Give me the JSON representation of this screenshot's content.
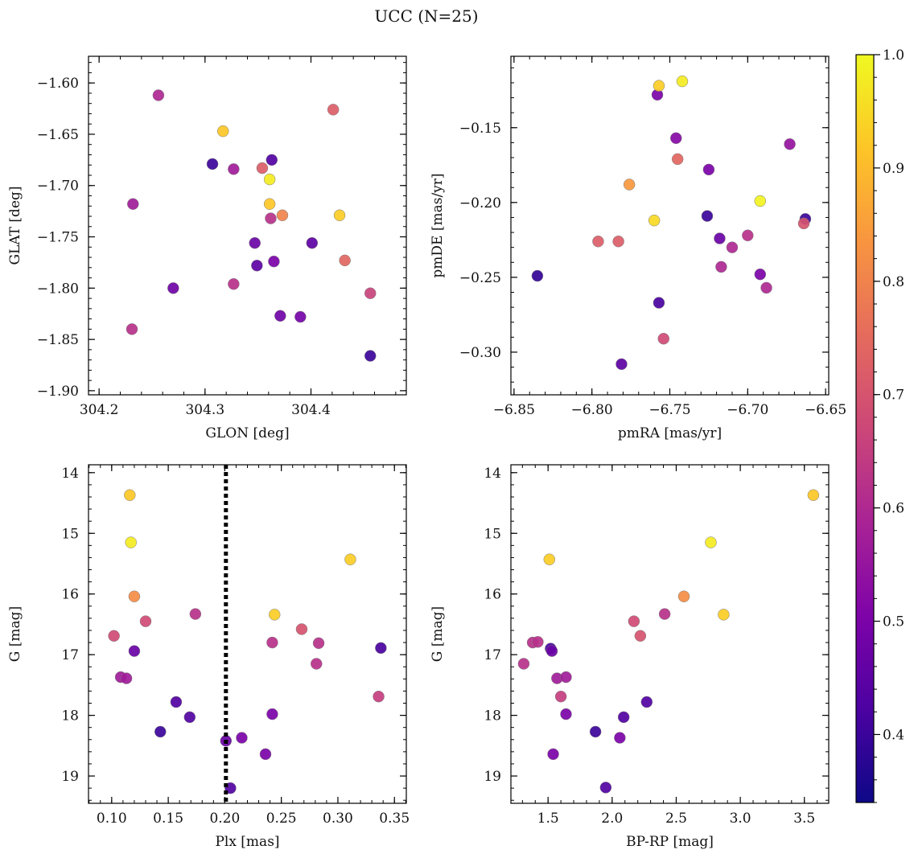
{
  "figure": {
    "title": "UCC (N=25)"
  },
  "colorbar": {
    "range": [
      0.34,
      1.0
    ],
    "ticks": [
      "0.4",
      "0.5",
      "0.6",
      "0.7",
      "0.8",
      "0.9",
      "1.0"
    ],
    "tick_values": [
      0.4,
      0.5,
      0.6,
      0.7,
      0.8,
      0.9,
      1.0
    ],
    "colormap": "plasma"
  },
  "chart_data": [
    {
      "type": "scatter",
      "xlabel": "GLON [deg]",
      "ylabel": "GLAT [deg]",
      "xlim": [
        304.19,
        304.49
      ],
      "ylim": [
        -1.904,
        -1.574
      ],
      "x_ticks": [
        "304.2",
        "304.3",
        "304.4"
      ],
      "x_tick_values": [
        304.2,
        304.3,
        304.4
      ],
      "y_ticks": [
        "−1.60",
        "−1.65",
        "−1.70",
        "−1.75",
        "−1.80",
        "−1.85",
        "−1.90"
      ],
      "y_tick_values": [
        -1.6,
        -1.65,
        -1.7,
        -1.75,
        -1.8,
        -1.85,
        -1.9
      ],
      "points": [
        {
          "x": 304.256,
          "y": -1.612,
          "c": 0.6
        },
        {
          "x": 304.421,
          "y": -1.626,
          "c": 0.72
        },
        {
          "x": 304.317,
          "y": -1.647,
          "c": 0.92
        },
        {
          "x": 304.363,
          "y": -1.675,
          "c": 0.43
        },
        {
          "x": 304.307,
          "y": -1.679,
          "c": 0.4
        },
        {
          "x": 304.327,
          "y": -1.684,
          "c": 0.57
        },
        {
          "x": 304.354,
          "y": -1.683,
          "c": 0.72
        },
        {
          "x": 304.361,
          "y": -1.694,
          "c": 0.98
        },
        {
          "x": 304.232,
          "y": -1.718,
          "c": 0.57
        },
        {
          "x": 304.361,
          "y": -1.718,
          "c": 0.92
        },
        {
          "x": 304.373,
          "y": -1.729,
          "c": 0.8
        },
        {
          "x": 304.427,
          "y": -1.729,
          "c": 0.93
        },
        {
          "x": 304.362,
          "y": -1.732,
          "c": 0.62
        },
        {
          "x": 304.347,
          "y": -1.756,
          "c": 0.47
        },
        {
          "x": 304.401,
          "y": -1.756,
          "c": 0.45
        },
        {
          "x": 304.365,
          "y": -1.774,
          "c": 0.5
        },
        {
          "x": 304.432,
          "y": -1.773,
          "c": 0.74
        },
        {
          "x": 304.349,
          "y": -1.778,
          "c": 0.45
        },
        {
          "x": 304.327,
          "y": -1.796,
          "c": 0.62
        },
        {
          "x": 304.27,
          "y": -1.8,
          "c": 0.48
        },
        {
          "x": 304.456,
          "y": -1.805,
          "c": 0.66
        },
        {
          "x": 304.371,
          "y": -1.827,
          "c": 0.48
        },
        {
          "x": 304.39,
          "y": -1.828,
          "c": 0.49
        },
        {
          "x": 304.231,
          "y": -1.84,
          "c": 0.62
        },
        {
          "x": 304.456,
          "y": -1.866,
          "c": 0.4
        }
      ]
    },
    {
      "type": "scatter",
      "xlabel": "pmRA [mas/yr]",
      "ylabel": "pmDE [mas/yr]",
      "xlim": [
        -6.852,
        -6.648
      ],
      "ylim": [
        -0.3285,
        -0.1023
      ],
      "x_ticks": [
        "−6.85",
        "−6.80",
        "−6.75",
        "−6.70",
        "−6.65"
      ],
      "x_tick_values": [
        -6.85,
        -6.8,
        -6.75,
        -6.7,
        -6.65
      ],
      "y_ticks": [
        "−0.15",
        "−0.20",
        "−0.25",
        "−0.30"
      ],
      "y_tick_values": [
        -0.15,
        -0.2,
        -0.25,
        -0.3
      ],
      "points": [
        {
          "x": -6.742,
          "y": -0.119,
          "c": 0.98
        },
        {
          "x": -6.757,
          "y": -0.122,
          "c": 0.93
        },
        {
          "x": -6.758,
          "y": -0.128,
          "c": 0.5
        },
        {
          "x": -6.746,
          "y": -0.157,
          "c": 0.52
        },
        {
          "x": -6.673,
          "y": -0.161,
          "c": 0.55
        },
        {
          "x": -6.745,
          "y": -0.171,
          "c": 0.74
        },
        {
          "x": -6.725,
          "y": -0.178,
          "c": 0.5
        },
        {
          "x": -6.776,
          "y": -0.188,
          "c": 0.84
        },
        {
          "x": -6.692,
          "y": -0.199,
          "c": 0.99
        },
        {
          "x": -6.726,
          "y": -0.209,
          "c": 0.4
        },
        {
          "x": -6.663,
          "y": -0.211,
          "c": 0.4
        },
        {
          "x": -6.76,
          "y": -0.212,
          "c": 0.95
        },
        {
          "x": -6.664,
          "y": -0.214,
          "c": 0.7
        },
        {
          "x": -6.7,
          "y": -0.222,
          "c": 0.62
        },
        {
          "x": -6.718,
          "y": -0.224,
          "c": 0.47
        },
        {
          "x": -6.796,
          "y": -0.226,
          "c": 0.72
        },
        {
          "x": -6.783,
          "y": -0.226,
          "c": 0.72
        },
        {
          "x": -6.71,
          "y": -0.23,
          "c": 0.6
        },
        {
          "x": -6.717,
          "y": -0.243,
          "c": 0.6
        },
        {
          "x": -6.692,
          "y": -0.248,
          "c": 0.5
        },
        {
          "x": -6.835,
          "y": -0.249,
          "c": 0.39
        },
        {
          "x": -6.688,
          "y": -0.257,
          "c": 0.6
        },
        {
          "x": -6.757,
          "y": -0.267,
          "c": 0.42
        },
        {
          "x": -6.754,
          "y": -0.291,
          "c": 0.68
        },
        {
          "x": -6.781,
          "y": -0.308,
          "c": 0.45
        }
      ]
    },
    {
      "type": "scatter",
      "xlabel": "Plx [mas]",
      "ylabel": "G [mag]",
      "xlim": [
        0.0795,
        0.3605
      ],
      "ylim": [
        19.45,
        13.87
      ],
      "y_inverted": true,
      "x_ticks": [
        "0.10",
        "0.15",
        "0.20",
        "0.25",
        "0.30",
        "0.35"
      ],
      "x_tick_values": [
        0.1,
        0.15,
        0.2,
        0.25,
        0.3,
        0.35
      ],
      "y_ticks": [
        "14",
        "15",
        "16",
        "17",
        "18",
        "19"
      ],
      "y_tick_values": [
        14,
        15,
        16,
        17,
        18,
        19
      ],
      "vline": {
        "x": 0.201,
        "style": "dotted",
        "color": "#000000"
      },
      "points": [
        {
          "x": 0.116,
          "y": 14.37,
          "c": 0.92
        },
        {
          "x": 0.117,
          "y": 15.15,
          "c": 0.98
        },
        {
          "x": 0.311,
          "y": 15.43,
          "c": 0.93
        },
        {
          "x": 0.12,
          "y": 16.04,
          "c": 0.82
        },
        {
          "x": 0.174,
          "y": 16.33,
          "c": 0.62
        },
        {
          "x": 0.244,
          "y": 16.34,
          "c": 0.93
        },
        {
          "x": 0.13,
          "y": 16.45,
          "c": 0.68
        },
        {
          "x": 0.268,
          "y": 16.58,
          "c": 0.7
        },
        {
          "x": 0.102,
          "y": 16.69,
          "c": 0.68
        },
        {
          "x": 0.242,
          "y": 16.8,
          "c": 0.62
        },
        {
          "x": 0.283,
          "y": 16.81,
          "c": 0.62
        },
        {
          "x": 0.338,
          "y": 16.89,
          "c": 0.42
        },
        {
          "x": 0.12,
          "y": 16.94,
          "c": 0.47
        },
        {
          "x": 0.281,
          "y": 17.15,
          "c": 0.62
        },
        {
          "x": 0.108,
          "y": 17.37,
          "c": 0.57
        },
        {
          "x": 0.113,
          "y": 17.39,
          "c": 0.57
        },
        {
          "x": 0.336,
          "y": 17.69,
          "c": 0.65
        },
        {
          "x": 0.157,
          "y": 17.78,
          "c": 0.43
        },
        {
          "x": 0.169,
          "y": 18.03,
          "c": 0.43
        },
        {
          "x": 0.242,
          "y": 17.98,
          "c": 0.5
        },
        {
          "x": 0.143,
          "y": 18.27,
          "c": 0.4
        },
        {
          "x": 0.215,
          "y": 18.37,
          "c": 0.5
        },
        {
          "x": 0.201,
          "y": 18.42,
          "c": 0.47
        },
        {
          "x": 0.236,
          "y": 18.64,
          "c": 0.5
        },
        {
          "x": 0.205,
          "y": 19.2,
          "c": 0.43
        }
      ]
    },
    {
      "type": "scatter",
      "xlabel": "BP-RP [mag]",
      "ylabel": "G [mag]",
      "xlim": [
        1.21,
        3.69
      ],
      "ylim": [
        19.45,
        13.87
      ],
      "y_inverted": true,
      "x_ticks": [
        "1.5",
        "2.0",
        "2.5",
        "3.0",
        "3.5"
      ],
      "x_tick_values": [
        1.5,
        2.0,
        2.5,
        3.0,
        3.5
      ],
      "y_ticks": [
        "14",
        "15",
        "16",
        "17",
        "18",
        "19"
      ],
      "y_tick_values": [
        14,
        15,
        16,
        17,
        18,
        19
      ],
      "points": [
        {
          "x": 3.57,
          "y": 14.37,
          "c": 0.92
        },
        {
          "x": 2.77,
          "y": 15.15,
          "c": 0.98
        },
        {
          "x": 1.51,
          "y": 15.43,
          "c": 0.93
        },
        {
          "x": 2.56,
          "y": 16.04,
          "c": 0.82
        },
        {
          "x": 2.41,
          "y": 16.33,
          "c": 0.62
        },
        {
          "x": 2.87,
          "y": 16.34,
          "c": 0.93
        },
        {
          "x": 2.17,
          "y": 16.45,
          "c": 0.68
        },
        {
          "x": 2.22,
          "y": 16.69,
          "c": 0.7
        },
        {
          "x": 1.38,
          "y": 16.8,
          "c": 0.62
        },
        {
          "x": 1.42,
          "y": 16.79,
          "c": 0.62
        },
        {
          "x": 1.52,
          "y": 16.9,
          "c": 0.42
        },
        {
          "x": 1.53,
          "y": 16.94,
          "c": 0.47
        },
        {
          "x": 1.31,
          "y": 17.15,
          "c": 0.62
        },
        {
          "x": 1.57,
          "y": 17.39,
          "c": 0.57
        },
        {
          "x": 1.64,
          "y": 17.37,
          "c": 0.57
        },
        {
          "x": 1.6,
          "y": 17.69,
          "c": 0.65
        },
        {
          "x": 2.27,
          "y": 17.78,
          "c": 0.43
        },
        {
          "x": 1.64,
          "y": 17.98,
          "c": 0.5
        },
        {
          "x": 2.09,
          "y": 18.03,
          "c": 0.43
        },
        {
          "x": 1.87,
          "y": 18.27,
          "c": 0.4
        },
        {
          "x": 2.06,
          "y": 18.37,
          "c": 0.5
        },
        {
          "x": 1.54,
          "y": 18.64,
          "c": 0.5
        },
        {
          "x": 1.95,
          "y": 19.19,
          "c": 0.43
        }
      ]
    }
  ]
}
